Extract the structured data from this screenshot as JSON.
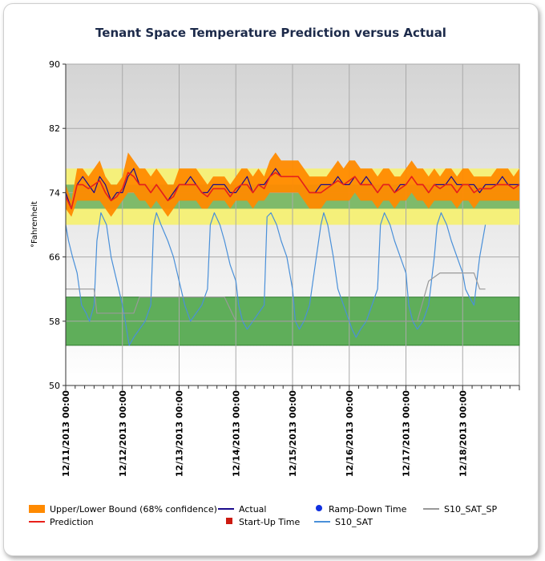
{
  "chart_data": {
    "type": "line",
    "title": "Tenant Space Temperature Prediction versus Actual",
    "ylabel": "°Fahrenheit",
    "xlabel": "",
    "ylim": [
      50,
      90
    ],
    "yticks": [
      50,
      58,
      66,
      74,
      82,
      90
    ],
    "xlim": [
      0,
      8
    ],
    "x_ticks": [
      {
        "x": 0,
        "label": "12/11/2013 00:00"
      },
      {
        "x": 1,
        "label": "12/12/2013 00:00"
      },
      {
        "x": 2,
        "label": "12/13/2013 00:00"
      },
      {
        "x": 3,
        "label": "12/14/2013 00:00"
      },
      {
        "x": 4,
        "label": "12/15/2013 00:00"
      },
      {
        "x": 5,
        "label": "12/16/2013 00:00"
      },
      {
        "x": 6,
        "label": "12/17/2013 00:00"
      },
      {
        "x": 7,
        "label": "12/18/2013 00:00"
      }
    ],
    "grid": true,
    "legend_position": "bottom",
    "bands": [
      {
        "from": 70,
        "to": 77,
        "color": "#f5f07a"
      },
      {
        "from": 72,
        "to": 75,
        "color": "#7fba6a"
      },
      {
        "from": 55,
        "to": 61,
        "color": "#5fae5a"
      }
    ],
    "series": [
      {
        "name": "Upper/Lower Bound (68% confidence)",
        "kind": "band",
        "color": "#ff8a00",
        "x": [
          0,
          0.1,
          0.2,
          0.3,
          0.4,
          0.5,
          0.6,
          0.7,
          0.8,
          0.9,
          1.0,
          1.1,
          1.2,
          1.3,
          1.4,
          1.5,
          1.6,
          1.7,
          1.8,
          1.9,
          2.0,
          2.1,
          2.2,
          2.3,
          2.4,
          2.5,
          2.6,
          2.7,
          2.8,
          2.9,
          3.0,
          3.1,
          3.2,
          3.3,
          3.4,
          3.5,
          3.6,
          3.7,
          3.8,
          3.9,
          4.0,
          4.1,
          4.2,
          4.3,
          4.4,
          4.5,
          4.6,
          4.7,
          4.8,
          4.9,
          5.0,
          5.1,
          5.2,
          5.3,
          5.4,
          5.5,
          5.6,
          5.7,
          5.8,
          5.9,
          6.0,
          6.1,
          6.2,
          6.3,
          6.4,
          6.5,
          6.6,
          6.7,
          6.8,
          6.9,
          7.0,
          7.1,
          7.2,
          7.3,
          7.4,
          7.5,
          7.6,
          7.7,
          7.8,
          7.9,
          8.0
        ],
        "upper": [
          75,
          73,
          77,
          77,
          76,
          77,
          78,
          76,
          75,
          75,
          76,
          79,
          78,
          77,
          77,
          76,
          77,
          76,
          75,
          75,
          77,
          77,
          77,
          77,
          76,
          75,
          76,
          76,
          76,
          75,
          76,
          77,
          77,
          76,
          77,
          76,
          78,
          79,
          78,
          78,
          78,
          78,
          77,
          76,
          76,
          76,
          76,
          77,
          78,
          77,
          78,
          78,
          77,
          77,
          77,
          76,
          77,
          77,
          76,
          76,
          77,
          78,
          77,
          77,
          76,
          77,
          76,
          77,
          77,
          76,
          77,
          77,
          76,
          76,
          76,
          76,
          77,
          77,
          77,
          76,
          77
        ],
        "lower": [
          72,
          71,
          73,
          73,
          73,
          73,
          73,
          72,
          71,
          72,
          73,
          74,
          74,
          73,
          73,
          72,
          73,
          72,
          71,
          72,
          73,
          73,
          73,
          73,
          72,
          72,
          73,
          73,
          73,
          72,
          73,
          73,
          73,
          72,
          73,
          73,
          74,
          74,
          74,
          74,
          74,
          74,
          73,
          72,
          72,
          72,
          73,
          73,
          73,
          73,
          73,
          74,
          73,
          73,
          73,
          72,
          73,
          73,
          72,
          73,
          73,
          74,
          73,
          73,
          72,
          73,
          73,
          73,
          73,
          72,
          73,
          73,
          72,
          73,
          73,
          73,
          73,
          73,
          73,
          73,
          73
        ]
      },
      {
        "name": "Actual",
        "kind": "line",
        "color": "#1a0a8c",
        "x": [
          0,
          0.1,
          0.2,
          0.3,
          0.4,
          0.5,
          0.6,
          0.7,
          0.8,
          0.9,
          1.0,
          1.1,
          1.2,
          1.3,
          1.4,
          1.5,
          1.6,
          1.7,
          1.8,
          1.9,
          2.0,
          2.1,
          2.2,
          2.3,
          2.4,
          2.5,
          2.6,
          2.7,
          2.8,
          2.9,
          3.0,
          3.1,
          3.2,
          3.3,
          3.4,
          3.5,
          3.6,
          3.7,
          3.8,
          3.9,
          4.0,
          4.1,
          4.2,
          4.3,
          4.4,
          4.5,
          4.6,
          4.7,
          4.8,
          4.9,
          5.0,
          5.1,
          5.2,
          5.3,
          5.4,
          5.5,
          5.6,
          5.7,
          5.8,
          5.9,
          6.0,
          6.1,
          6.2,
          6.3,
          6.4,
          6.5,
          6.6,
          6.7,
          6.8,
          6.9,
          7.0,
          7.1,
          7.2,
          7.3,
          7.4,
          7.5,
          7.6,
          7.7,
          7.8,
          7.9,
          8.0
        ],
        "y": [
          74,
          72,
          75,
          76,
          75,
          74,
          76,
          75,
          73,
          74,
          74,
          76,
          77,
          75,
          75,
          74,
          75,
          74,
          73,
          74,
          75,
          75,
          76,
          75,
          74,
          74,
          75,
          75,
          75,
          74,
          74,
          75,
          76,
          74,
          75,
          75,
          76,
          77,
          76,
          76,
          76,
          76,
          75,
          74,
          74,
          75,
          75,
          75,
          76,
          75,
          75,
          76,
          75,
          76,
          75,
          74,
          75,
          75,
          74,
          75,
          75,
          76,
          75,
          75,
          74,
          75,
          75,
          75,
          76,
          75,
          75,
          75,
          75,
          74,
          75,
          75,
          75,
          76,
          75,
          75,
          75
        ]
      },
      {
        "name": "Prediction",
        "kind": "line",
        "color": "#e8201a",
        "x": [
          0,
          0.1,
          0.2,
          0.3,
          0.4,
          0.5,
          0.6,
          0.7,
          0.8,
          0.9,
          1.0,
          1.1,
          1.2,
          1.3,
          1.4,
          1.5,
          1.6,
          1.7,
          1.8,
          1.9,
          2.0,
          2.1,
          2.2,
          2.3,
          2.4,
          2.5,
          2.6,
          2.7,
          2.8,
          2.9,
          3.0,
          3.1,
          3.2,
          3.3,
          3.4,
          3.5,
          3.6,
          3.7,
          3.8,
          3.9,
          4.0,
          4.1,
          4.2,
          4.3,
          4.4,
          4.5,
          4.6,
          4.7,
          4.8,
          4.9,
          5.0,
          5.1,
          5.2,
          5.3,
          5.4,
          5.5,
          5.6,
          5.7,
          5.8,
          5.9,
          6.0,
          6.1,
          6.2,
          6.3,
          6.4,
          6.5,
          6.6,
          6.7,
          6.8,
          6.9,
          7.0,
          7.1,
          7.2,
          7.3,
          7.4,
          7.5,
          7.6,
          7.7,
          7.8,
          7.9,
          8.0
        ],
        "y": [
          73.5,
          72,
          75,
          75,
          74.5,
          75,
          75.5,
          74,
          73,
          73.5,
          74.5,
          76.5,
          76,
          75,
          75,
          74,
          75,
          74,
          73,
          73.5,
          75,
          75,
          75,
          75,
          74,
          73.5,
          74.5,
          74.5,
          74.5,
          73.5,
          74.5,
          75,
          75,
          74,
          75,
          74.5,
          76,
          76.5,
          76,
          76,
          76,
          76,
          75,
          74,
          74,
          74,
          74.5,
          75,
          75.5,
          75,
          75.5,
          76,
          75,
          75,
          75,
          74,
          75,
          75,
          74,
          74.5,
          75,
          76,
          75,
          75,
          74,
          75,
          74.5,
          75,
          75,
          74,
          75,
          75,
          74,
          74.5,
          74.5,
          74.5,
          75,
          75,
          75,
          74.5,
          75
        ]
      },
      {
        "name": "S10_SAT",
        "kind": "line",
        "color": "#4a90d9",
        "x": [
          0,
          0.05,
          0.12,
          0.2,
          0.28,
          0.36,
          0.42,
          0.5,
          0.55,
          0.62,
          0.72,
          0.8,
          0.9,
          1.0,
          1.05,
          1.12,
          1.2,
          1.3,
          1.4,
          1.5,
          1.55,
          1.6,
          1.68,
          1.8,
          1.9,
          2.0,
          2.1,
          2.2,
          2.3,
          2.4,
          2.5,
          2.55,
          2.62,
          2.72,
          2.8,
          2.9,
          3.0,
          3.05,
          3.12,
          3.2,
          3.3,
          3.4,
          3.5,
          3.55,
          3.62,
          3.72,
          3.8,
          3.9,
          4.0,
          4.05,
          4.12,
          4.2,
          4.3,
          4.4,
          4.5,
          4.55,
          4.62,
          4.72,
          4.8,
          4.9,
          5.0,
          5.05,
          5.12,
          5.2,
          5.3,
          5.4,
          5.5,
          5.55,
          5.62,
          5.72,
          5.8,
          5.9,
          6.0,
          6.05,
          6.12,
          6.2,
          6.3,
          6.4,
          6.5,
          6.55,
          6.62,
          6.72,
          6.8,
          6.9,
          7.0,
          7.05,
          7.12,
          7.2,
          7.3,
          7.4
        ],
        "y": [
          70,
          68,
          66,
          64,
          60,
          59,
          58,
          60,
          68,
          71.5,
          70,
          66,
          63,
          60,
          58,
          55,
          56,
          57,
          58,
          60,
          70,
          71.5,
          70,
          68,
          66,
          63,
          60,
          58,
          59,
          60,
          62,
          70,
          71.5,
          70,
          68,
          65,
          63,
          60,
          58,
          57,
          58,
          59,
          60,
          71,
          71.5,
          70,
          68,
          66,
          62,
          58,
          57,
          58,
          60,
          65,
          70,
          71.5,
          70,
          66,
          62,
          60,
          58,
          57,
          56,
          57,
          58,
          60,
          62,
          70,
          71.5,
          70,
          68,
          66,
          64,
          60,
          58,
          57,
          58,
          60,
          66,
          70,
          71.5,
          70,
          68,
          66,
          64,
          62,
          61,
          60,
          66,
          70
        ]
      },
      {
        "name": "S10_SAT_SP",
        "kind": "line",
        "color": "#999999",
        "x": [
          0,
          0.2,
          0.4,
          0.5,
          0.55,
          0.8,
          1.0,
          1.2,
          1.3,
          1.4,
          1.6,
          1.8,
          2.0,
          2.2,
          2.4,
          2.6,
          2.8,
          3.0,
          3.2,
          3.4,
          3.6,
          3.8,
          4.0,
          4.2,
          4.4,
          4.6,
          4.8,
          5.0,
          5.2,
          5.4,
          5.6,
          5.8,
          6.0,
          6.2,
          6.4,
          6.6,
          6.8,
          7.0,
          7.2,
          7.3,
          7.4
        ],
        "y": [
          62,
          62,
          62,
          62,
          59,
          59,
          59,
          59,
          61,
          61,
          61,
          61,
          61,
          61,
          61,
          61,
          61,
          58,
          58,
          58,
          58,
          58,
          58,
          58,
          58,
          58,
          58,
          58,
          58,
          58,
          58,
          58,
          58,
          58,
          63,
          64,
          64,
          64,
          64,
          62,
          62
        ]
      },
      {
        "name": "Ramp-Down Time",
        "kind": "marker",
        "marker": "circle",
        "color": "#1030e0",
        "x": [],
        "y": []
      },
      {
        "name": "Start-Up Time",
        "kind": "marker",
        "marker": "square",
        "color": "#cc1a10",
        "x": [],
        "y": []
      }
    ]
  }
}
